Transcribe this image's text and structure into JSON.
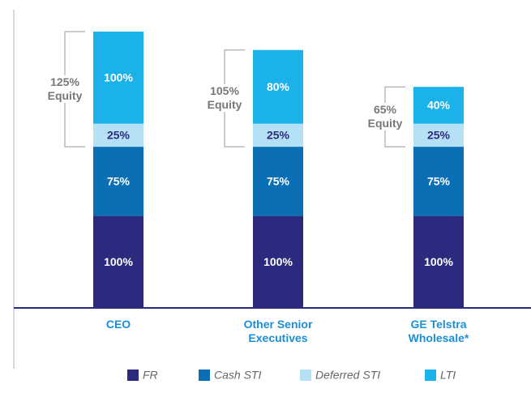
{
  "chart_data": {
    "type": "stacked-bar",
    "categories": [
      "CEO",
      "Other Senior Executives",
      "GE Telstra Wholesale*"
    ],
    "series": [
      {
        "name": "FR",
        "color": "#2b2a7e",
        "label_color": "#ffffff",
        "values": [
          100,
          100,
          100
        ],
        "value_labels": [
          "100%",
          "100%",
          "100%"
        ]
      },
      {
        "name": "Cash STI",
        "color": "#0b6fb6",
        "label_color": "#ffffff",
        "values": [
          75,
          75,
          75
        ],
        "value_labels": [
          "75%",
          "75%",
          "75%"
        ]
      },
      {
        "name": "Deferred STI",
        "color": "#b5e1f6",
        "label_color": "#2b2a7e",
        "values": [
          25,
          25,
          25
        ],
        "value_labels": [
          "25%",
          "25%",
          "25%"
        ]
      },
      {
        "name": "LTI",
        "color": "#1bb1e9",
        "label_color": "#ffffff",
        "values": [
          100,
          80,
          40
        ],
        "value_labels": [
          "100%",
          "80%",
          "40%"
        ]
      }
    ],
    "annotations": [
      "125% Equity",
      "105% Equity",
      "65% Equity"
    ]
  }
}
